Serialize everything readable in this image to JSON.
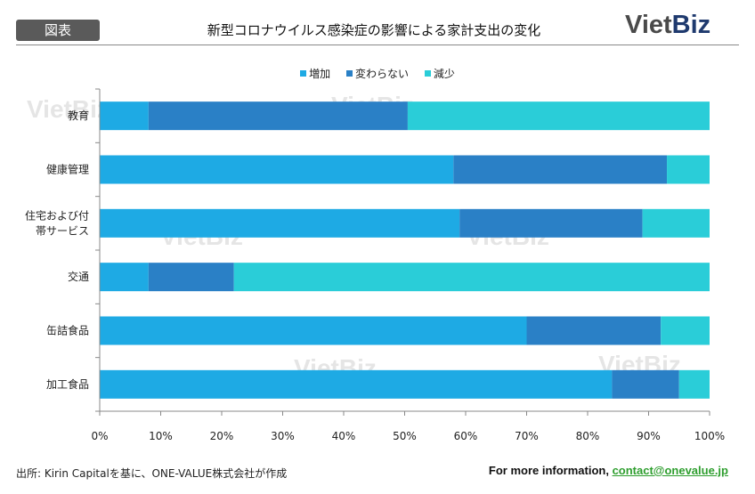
{
  "header": {
    "badge": "図表",
    "title": "新型コロナウイルス感染症の影響による家計支出の変化",
    "logo_a": "Viet",
    "logo_b": "Biz"
  },
  "watermark": "VietBiz",
  "chart_data": {
    "type": "bar",
    "orientation": "horizontal-stacked-100",
    "categories": [
      "教育",
      "健康管理",
      "住宅および付帯サービス",
      "交通",
      "缶詰食品",
      "加工食品"
    ],
    "category_lines": [
      [
        "教育"
      ],
      [
        "健康管理"
      ],
      [
        "住宅および付",
        "帯サービス"
      ],
      [
        "交通"
      ],
      [
        "缶詰食品"
      ],
      [
        "加工食品"
      ]
    ],
    "series": [
      {
        "name": "増加",
        "color": "#1eaae4",
        "values": [
          8,
          58,
          59,
          8,
          70,
          84
        ]
      },
      {
        "name": "変わらない",
        "color": "#2a80c6",
        "values": [
          42.5,
          35,
          30,
          14,
          22,
          11
        ]
      },
      {
        "name": "減少",
        "color": "#2acdd8",
        "values": [
          49.5,
          7,
          11,
          78,
          8,
          5
        ]
      }
    ],
    "xlim": [
      0,
      100
    ],
    "xticks": [
      "0%",
      "10%",
      "20%",
      "30%",
      "40%",
      "50%",
      "60%",
      "70%",
      "80%",
      "90%",
      "100%"
    ],
    "legend": "top-center",
    "grid": false
  },
  "footer": {
    "source": "出所: Kirin Capitalを基に、ONE-VALUE株式会社が作成",
    "more": "For more information, ",
    "contact": "contact@onevalue.jp"
  }
}
